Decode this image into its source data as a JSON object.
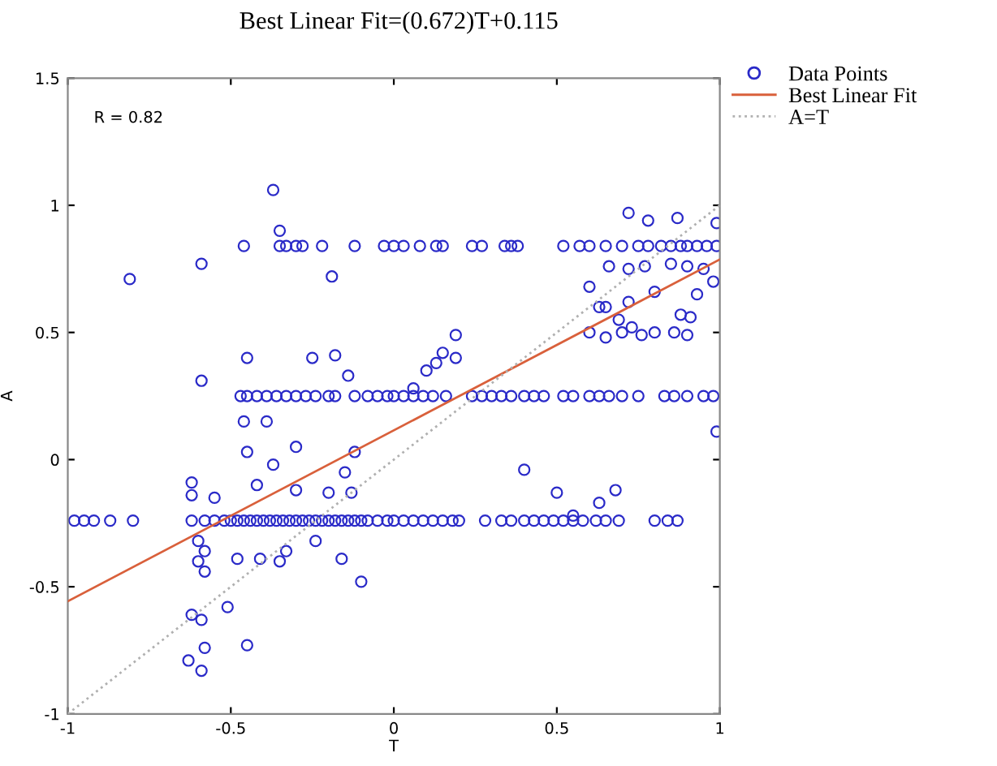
{
  "chart_data": {
    "type": "scatter",
    "title": "Best Linear Fit=(0.672)T+0.115",
    "xlabel": "T",
    "ylabel": "A",
    "annotations": [
      "R = 0.82"
    ],
    "xlim": [
      -1,
      1
    ],
    "ylim": [
      -1,
      1.5
    ],
    "xticks": [
      -1,
      -0.5,
      0,
      0.5,
      1
    ],
    "yticks": [
      -1,
      -0.5,
      0,
      0.5,
      1,
      1.5
    ],
    "grid": false,
    "legend": "top right",
    "series": [
      {
        "name": "Data Points",
        "marker": "circle",
        "color": "#2a2ac8",
        "x": [
          -0.98,
          -0.95,
          -0.92,
          -0.87,
          -0.8,
          -0.62,
          -0.58,
          -0.55,
          -0.52,
          -0.5,
          -0.48,
          -0.46,
          -0.44,
          -0.42,
          -0.4,
          -0.38,
          -0.36,
          -0.34,
          -0.32,
          -0.3,
          -0.28,
          -0.26,
          -0.24,
          -0.22,
          -0.2,
          -0.18,
          -0.16,
          -0.14,
          -0.12,
          -0.1,
          -0.08,
          -0.05,
          -0.02,
          0.0,
          0.03,
          0.06,
          0.09,
          0.12,
          0.15,
          0.18,
          0.2,
          0.28,
          0.33,
          0.36,
          0.4,
          0.43,
          0.46,
          0.49,
          0.52,
          0.55,
          0.58,
          0.62,
          0.65,
          0.69,
          0.8,
          0.84,
          0.87,
          -0.47,
          -0.45,
          -0.42,
          -0.39,
          -0.36,
          -0.33,
          -0.3,
          -0.27,
          -0.24,
          -0.2,
          -0.18,
          -0.12,
          -0.08,
          -0.05,
          -0.02,
          0.0,
          0.03,
          0.06,
          0.09,
          0.12,
          0.16,
          0.24,
          0.27,
          0.3,
          0.33,
          0.36,
          0.4,
          0.43,
          0.46,
          0.52,
          0.55,
          0.6,
          0.63,
          0.66,
          0.7,
          0.75,
          0.83,
          0.86,
          0.9,
          0.95,
          0.98,
          -0.46,
          -0.35,
          -0.33,
          -0.3,
          -0.28,
          -0.22,
          -0.12,
          -0.03,
          0.0,
          0.03,
          0.08,
          0.13,
          0.15,
          0.24,
          0.27,
          0.34,
          0.36,
          0.38,
          0.52,
          0.57,
          0.6,
          0.65,
          0.7,
          0.75,
          0.78,
          0.82,
          0.85,
          0.88,
          0.9,
          0.93,
          0.96,
          0.99,
          0.72,
          0.78,
          0.87,
          0.99,
          0.66,
          0.72,
          0.77,
          0.85,
          0.9,
          0.95,
          0.98,
          0.6,
          0.63,
          0.65,
          0.72,
          0.8,
          0.93,
          0.6,
          0.65,
          0.7,
          0.73,
          0.76,
          0.8,
          0.86,
          0.9,
          0.88,
          0.91,
          0.69,
          -0.81,
          -0.59,
          -0.37,
          -0.35,
          -0.19,
          -0.59,
          -0.45,
          -0.25,
          -0.18,
          -0.14,
          -0.46,
          -0.39,
          -0.45,
          -0.3,
          -0.12,
          -0.37,
          -0.42,
          -0.15,
          -0.62,
          -0.62,
          -0.55,
          -0.3,
          -0.2,
          -0.13,
          -0.6,
          -0.58,
          -0.6,
          -0.58,
          -0.48,
          -0.41,
          -0.35,
          -0.33,
          -0.24,
          -0.16,
          -0.1,
          -0.51,
          -0.62,
          -0.59,
          -0.58,
          -0.63,
          -0.59,
          -0.45,
          0.06,
          0.1,
          0.13,
          0.15,
          0.19,
          0.19,
          0.4,
          0.5,
          0.55,
          0.63,
          0.68,
          0.99
        ],
        "values": [
          -0.24,
          -0.24,
          -0.24,
          -0.24,
          -0.24,
          -0.24,
          -0.24,
          -0.24,
          -0.24,
          -0.24,
          -0.24,
          -0.24,
          -0.24,
          -0.24,
          -0.24,
          -0.24,
          -0.24,
          -0.24,
          -0.24,
          -0.24,
          -0.24,
          -0.24,
          -0.24,
          -0.24,
          -0.24,
          -0.24,
          -0.24,
          -0.24,
          -0.24,
          -0.24,
          -0.24,
          -0.24,
          -0.24,
          -0.24,
          -0.24,
          -0.24,
          -0.24,
          -0.24,
          -0.24,
          -0.24,
          -0.24,
          -0.24,
          -0.24,
          -0.24,
          -0.24,
          -0.24,
          -0.24,
          -0.24,
          -0.24,
          -0.24,
          -0.24,
          -0.24,
          -0.24,
          -0.24,
          -0.24,
          -0.24,
          -0.24,
          0.25,
          0.25,
          0.25,
          0.25,
          0.25,
          0.25,
          0.25,
          0.25,
          0.25,
          0.25,
          0.25,
          0.25,
          0.25,
          0.25,
          0.25,
          0.25,
          0.25,
          0.25,
          0.25,
          0.25,
          0.25,
          0.25,
          0.25,
          0.25,
          0.25,
          0.25,
          0.25,
          0.25,
          0.25,
          0.25,
          0.25,
          0.25,
          0.25,
          0.25,
          0.25,
          0.25,
          0.25,
          0.25,
          0.25,
          0.25,
          0.25,
          0.84,
          0.84,
          0.84,
          0.84,
          0.84,
          0.84,
          0.84,
          0.84,
          0.84,
          0.84,
          0.84,
          0.84,
          0.84,
          0.84,
          0.84,
          0.84,
          0.84,
          0.84,
          0.84,
          0.84,
          0.84,
          0.84,
          0.84,
          0.84,
          0.84,
          0.84,
          0.84,
          0.84,
          0.84,
          0.84,
          0.84,
          0.84,
          0.97,
          0.94,
          0.95,
          0.93,
          0.76,
          0.75,
          0.76,
          0.77,
          0.76,
          0.75,
          0.7,
          0.68,
          0.6,
          0.6,
          0.62,
          0.66,
          0.65,
          0.5,
          0.48,
          0.5,
          0.52,
          0.49,
          0.5,
          0.5,
          0.49,
          0.57,
          0.56,
          0.55,
          0.71,
          0.77,
          1.06,
          0.9,
          0.72,
          0.31,
          0.4,
          0.4,
          0.41,
          0.33,
          0.15,
          0.15,
          0.03,
          0.05,
          0.03,
          -0.02,
          -0.1,
          -0.05,
          -0.09,
          -0.14,
          -0.15,
          -0.12,
          -0.13,
          -0.13,
          -0.32,
          -0.36,
          -0.4,
          -0.44,
          -0.39,
          -0.39,
          -0.4,
          -0.36,
          -0.32,
          -0.39,
          -0.48,
          -0.58,
          -0.61,
          -0.63,
          -0.74,
          -0.79,
          -0.83,
          -0.73,
          0.28,
          0.35,
          0.38,
          0.42,
          0.49,
          0.4,
          -0.04,
          -0.13,
          -0.22,
          -0.17,
          -0.12,
          0.11
        ]
      },
      {
        "name": "Best Linear Fit",
        "type": "line",
        "color": "#d9603b",
        "line_style": "solid",
        "marker": "none",
        "x": [
          -1,
          1
        ],
        "values": [
          -0.557,
          0.787
        ]
      },
      {
        "name": "A=T",
        "type": "line",
        "color": "#b0b0b0",
        "line_style": "dotted",
        "marker": "none",
        "x": [
          -1,
          1
        ],
        "values": [
          -1,
          1
        ]
      }
    ]
  }
}
